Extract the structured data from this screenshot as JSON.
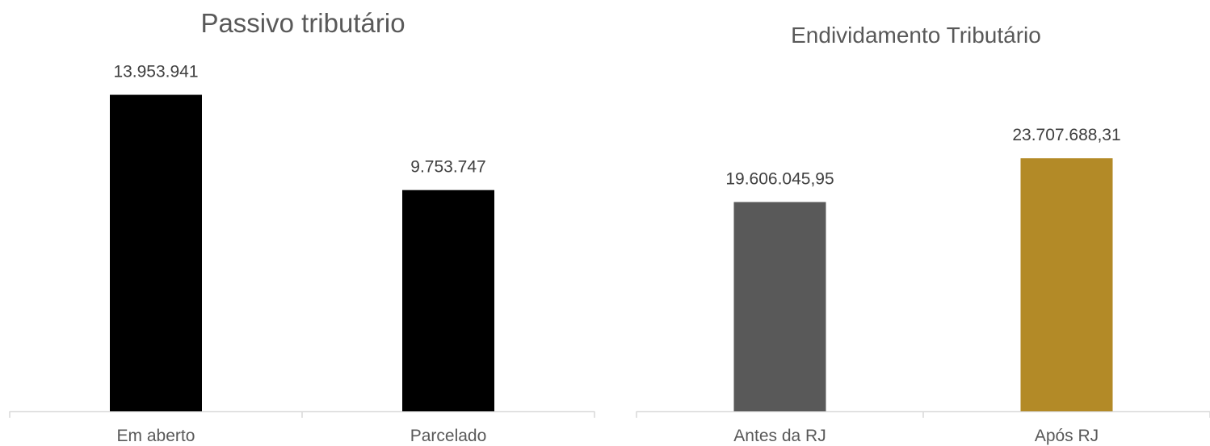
{
  "charts": [
    {
      "chart_data": {
        "type": "bar",
        "title": "Passivo tributário",
        "categories": [
          "Em aberto",
          "Parcelado"
        ],
        "values": [
          13953941,
          9753747
        ],
        "value_labels": [
          "13.953.941",
          "9.753.747"
        ],
        "colors": [
          "#000000",
          "#000000"
        ],
        "xlabel": "",
        "ylabel": "",
        "ylim": [
          0,
          16000000
        ],
        "grid": false,
        "legend": "none"
      }
    },
    {
      "chart_data": {
        "type": "bar",
        "title": "Endividamento Tributário",
        "categories": [
          "Antes da RJ",
          "Após RJ"
        ],
        "values": [
          19606045.95,
          23707688.31
        ],
        "value_labels": [
          "19.606.045,95",
          "23.707.688,31"
        ],
        "colors": [
          "#595959",
          "#b38a27"
        ],
        "xlabel": "",
        "ylabel": "",
        "ylim": [
          0,
          34000000
        ],
        "grid": false,
        "legend": "none"
      }
    }
  ]
}
